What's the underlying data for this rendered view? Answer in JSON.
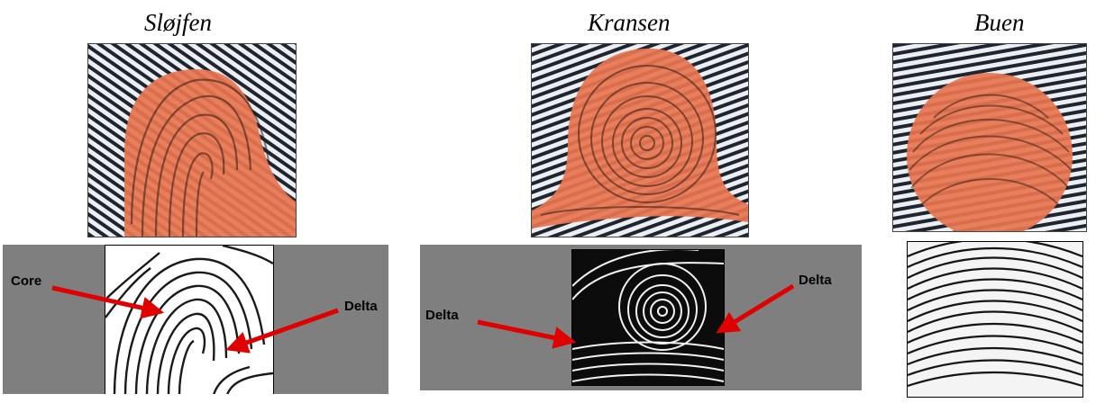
{
  "titles": {
    "loop": "Sløjfen",
    "whorl": "Kransen",
    "arch": "Buen"
  },
  "labels": {
    "core": "Core",
    "delta_loop": "Delta",
    "delta_whorl_left": "Delta",
    "delta_whorl_right": "Delta"
  },
  "colors": {
    "highlight": "#e8744f",
    "ridge": "#1a1a1a",
    "panel": "#7f7f7f",
    "arrow": "#e00000"
  }
}
